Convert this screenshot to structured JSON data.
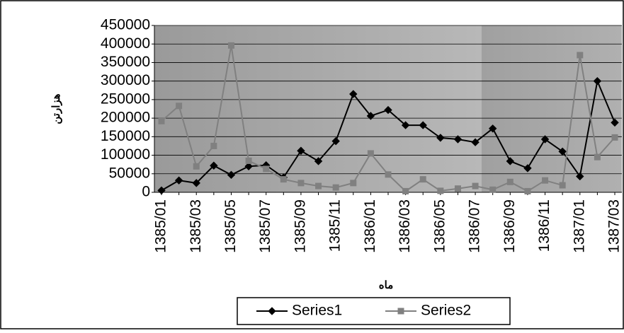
{
  "chart_data": {
    "type": "line",
    "x_label": "ماه",
    "y_label": "هزارتن",
    "categories": [
      "1385/01",
      null,
      "1385/03",
      null,
      "1385/05",
      null,
      "1385/07",
      null,
      "1385/09",
      null,
      "1385/11",
      null,
      "1386/01",
      null,
      "1386/03",
      null,
      "1386/05",
      null,
      "1386/07",
      null,
      "1386/09",
      null,
      "1386/11",
      null,
      "1387/01",
      null,
      "1387/03"
    ],
    "series": [
      {
        "name": "Series1",
        "color": "#000000",
        "marker": "diamond",
        "values": [
          5000,
          32000,
          25000,
          72000,
          47000,
          70000,
          73000,
          40000,
          112000,
          84000,
          138000,
          265000,
          206000,
          222000,
          181000,
          181000,
          147000,
          143000,
          135000,
          172000,
          84000,
          65000,
          143000,
          110000,
          43000,
          300000,
          188000
        ]
      },
      {
        "name": "Series2",
        "color": "#808080",
        "marker": "square",
        "values": [
          192000,
          233000,
          70000,
          125000,
          396000,
          85000,
          63000,
          35000,
          25000,
          17000,
          13000,
          25000,
          105000,
          48000,
          3000,
          35000,
          4000,
          10000,
          17000,
          7000,
          28000,
          3000,
          32000,
          19000,
          370000,
          95000,
          148000
        ]
      }
    ],
    "ylim": [
      0,
      450000
    ],
    "yticks": [
      0,
      50000,
      100000,
      150000,
      200000,
      250000,
      300000,
      350000,
      400000,
      450000
    ],
    "grid": true,
    "legend": "bottom"
  }
}
